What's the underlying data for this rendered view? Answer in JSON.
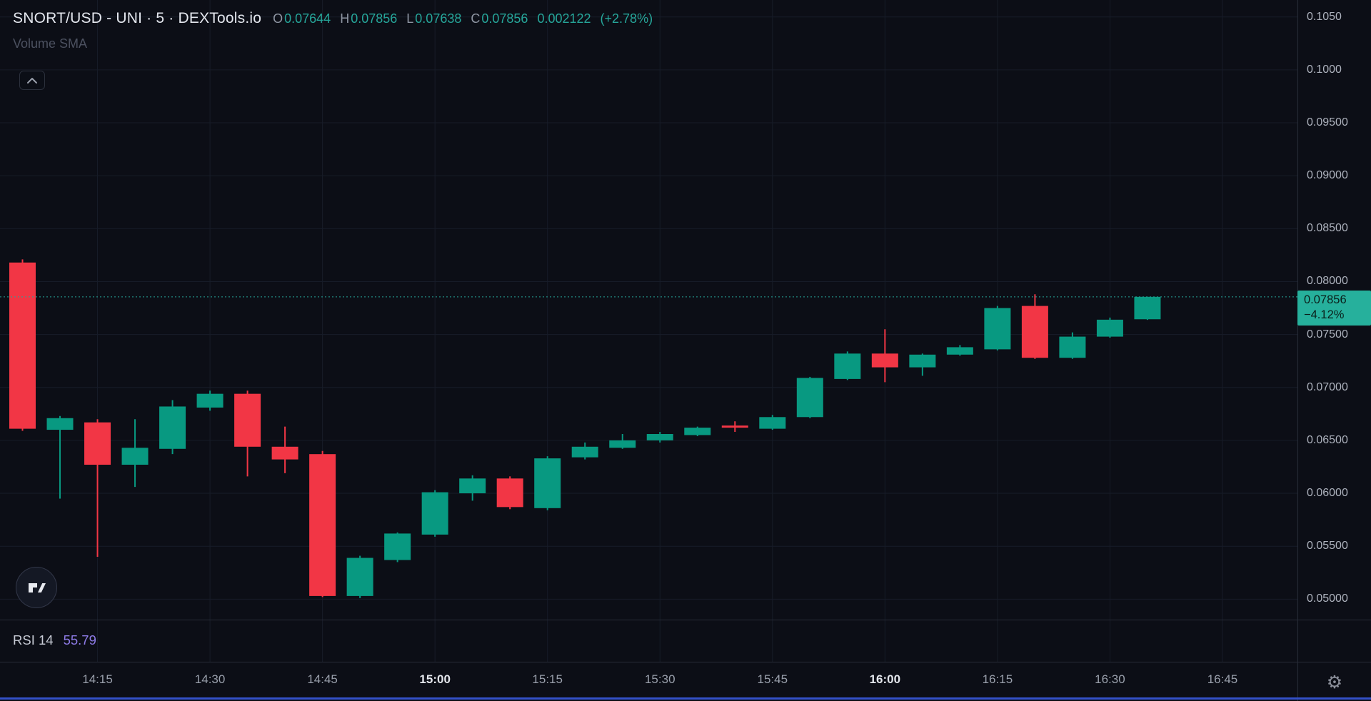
{
  "colors": {
    "background": "#0c0e16",
    "grid": "#171c28",
    "separator": "#272c38",
    "up": "#089981",
    "down": "#f23645",
    "accent_teal": "#26a69a",
    "badge_bg": "#26b09c",
    "badge_text": "#0a1f1a",
    "bottom_line": "#3350c8"
  },
  "header": {
    "symbol_title": "SNORT/USD - UNI · 5 · DEXTools.io",
    "open_label": "O",
    "open": "0.07644",
    "high_label": "H",
    "high": "0.07856",
    "low_label": "L",
    "low": "0.07638",
    "close_label": "C",
    "close": "0.07856",
    "change_abs": "0.002122",
    "change_pct": "(+2.78%)"
  },
  "indicators": {
    "volume": {
      "label": "Volume SMA"
    },
    "rsi": {
      "label": "RSI 14",
      "value": "55.79"
    }
  },
  "last_price_label": {
    "price": "0.07856",
    "change_pct": "−4.12%"
  },
  "price_scale": {
    "labels": [
      {
        "value": 0.105,
        "text": "0.1050"
      },
      {
        "value": 0.1,
        "text": "0.1000"
      },
      {
        "value": 0.095,
        "text": "0.09500"
      },
      {
        "value": 0.09,
        "text": "0.09000"
      },
      {
        "value": 0.085,
        "text": "0.08500"
      },
      {
        "value": 0.08,
        "text": "0.08000"
      },
      {
        "value": 0.075,
        "text": "0.07500"
      },
      {
        "value": 0.07,
        "text": "0.07000"
      },
      {
        "value": 0.065,
        "text": "0.06500"
      },
      {
        "value": 0.06,
        "text": "0.06000"
      },
      {
        "value": 0.055,
        "text": "0.05500"
      },
      {
        "value": 0.05,
        "text": "0.05000"
      }
    ]
  },
  "time_scale": {
    "labels": [
      {
        "time": "14:15",
        "text": "14:15",
        "bold": false
      },
      {
        "time": "14:30",
        "text": "14:30",
        "bold": false
      },
      {
        "time": "14:45",
        "text": "14:45",
        "bold": false
      },
      {
        "time": "15:00",
        "text": "15:00",
        "bold": true
      },
      {
        "time": "15:15",
        "text": "15:15",
        "bold": false
      },
      {
        "time": "15:30",
        "text": "15:30",
        "bold": false
      },
      {
        "time": "15:45",
        "text": "15:45",
        "bold": false
      },
      {
        "time": "16:00",
        "text": "16:00",
        "bold": true
      },
      {
        "time": "16:15",
        "text": "16:15",
        "bold": false
      },
      {
        "time": "16:30",
        "text": "16:30",
        "bold": false
      },
      {
        "time": "16:45",
        "text": "16:45",
        "bold": false
      }
    ]
  },
  "icons": {
    "collapse_button": "chevron-up-icon",
    "settings_button": "gear-icon",
    "logo": "tradingview-logo"
  },
  "chart_data": {
    "type": "candlestick",
    "title": "SNORT/USD - UNI · 5 · DEXTools.io",
    "symbol": "SNORT/USD",
    "interval_minutes": 5,
    "source": "DEXTools.io",
    "last_price": 0.07856,
    "legend_position": "top-left",
    "grid": true,
    "candles": [
      {
        "time": "14:05",
        "open": 0.0818,
        "high": 0.0821,
        "low": 0.0659,
        "close": 0.0661
      },
      {
        "time": "14:10",
        "open": 0.066,
        "high": 0.0673,
        "low": 0.0595,
        "close": 0.0671
      },
      {
        "time": "14:15",
        "open": 0.0667,
        "high": 0.067,
        "low": 0.054,
        "close": 0.0627
      },
      {
        "time": "14:20",
        "open": 0.0627,
        "high": 0.067,
        "low": 0.0606,
        "close": 0.0643
      },
      {
        "time": "14:25",
        "open": 0.0642,
        "high": 0.0688,
        "low": 0.0637,
        "close": 0.0682
      },
      {
        "time": "14:30",
        "open": 0.0681,
        "high": 0.0697,
        "low": 0.0678,
        "close": 0.0694
      },
      {
        "time": "14:35",
        "open": 0.0694,
        "high": 0.0697,
        "low": 0.0616,
        "close": 0.0644
      },
      {
        "time": "14:40",
        "open": 0.0644,
        "high": 0.0663,
        "low": 0.0619,
        "close": 0.0632
      },
      {
        "time": "14:45",
        "open": 0.0637,
        "high": 0.064,
        "low": 0.0502,
        "close": 0.0503
      },
      {
        "time": "14:50",
        "open": 0.0503,
        "high": 0.0541,
        "low": 0.0501,
        "close": 0.0539
      },
      {
        "time": "14:55",
        "open": 0.0537,
        "high": 0.0563,
        "low": 0.0535,
        "close": 0.0562
      },
      {
        "time": "15:00",
        "open": 0.0561,
        "high": 0.0603,
        "low": 0.0559,
        "close": 0.0601
      },
      {
        "time": "15:05",
        "open": 0.06,
        "high": 0.0617,
        "low": 0.0593,
        "close": 0.0614
      },
      {
        "time": "15:10",
        "open": 0.0614,
        "high": 0.0616,
        "low": 0.0585,
        "close": 0.0587
      },
      {
        "time": "15:15",
        "open": 0.0586,
        "high": 0.0635,
        "low": 0.0584,
        "close": 0.0633
      },
      {
        "time": "15:20",
        "open": 0.0634,
        "high": 0.0648,
        "low": 0.0632,
        "close": 0.0644
      },
      {
        "time": "15:25",
        "open": 0.0643,
        "high": 0.0656,
        "low": 0.0642,
        "close": 0.065
      },
      {
        "time": "15:30",
        "open": 0.065,
        "high": 0.0658,
        "low": 0.0648,
        "close": 0.0656
      },
      {
        "time": "15:35",
        "open": 0.0655,
        "high": 0.0663,
        "low": 0.0654,
        "close": 0.0662
      },
      {
        "time": "15:40",
        "open": 0.0664,
        "high": 0.0668,
        "low": 0.0658,
        "close": 0.0662
      },
      {
        "time": "15:45",
        "open": 0.0661,
        "high": 0.0674,
        "low": 0.066,
        "close": 0.0672
      },
      {
        "time": "15:50",
        "open": 0.0672,
        "high": 0.071,
        "low": 0.0671,
        "close": 0.0709
      },
      {
        "time": "15:55",
        "open": 0.0708,
        "high": 0.0734,
        "low": 0.0707,
        "close": 0.0732
      },
      {
        "time": "16:00",
        "open": 0.0732,
        "high": 0.0755,
        "low": 0.0705,
        "close": 0.0719
      },
      {
        "time": "16:05",
        "open": 0.0719,
        "high": 0.0732,
        "low": 0.0711,
        "close": 0.0731
      },
      {
        "time": "16:10",
        "open": 0.0731,
        "high": 0.074,
        "low": 0.073,
        "close": 0.0738
      },
      {
        "time": "16:15",
        "open": 0.0736,
        "high": 0.0777,
        "low": 0.0735,
        "close": 0.0775
      },
      {
        "time": "16:20",
        "open": 0.0777,
        "high": 0.0788,
        "low": 0.0727,
        "close": 0.0728
      },
      {
        "time": "16:25",
        "open": 0.0728,
        "high": 0.0752,
        "low": 0.0727,
        "close": 0.0748
      },
      {
        "time": "16:30",
        "open": 0.0748,
        "high": 0.0766,
        "low": 0.0747,
        "close": 0.0764
      },
      {
        "time": "16:35",
        "open": 0.07644,
        "high": 0.07856,
        "low": 0.07638,
        "close": 0.07856
      }
    ],
    "layout": {
      "pane_width": 1817,
      "pane_height": 869,
      "grid_bottom": 927,
      "x_time_start": "14:02",
      "x_time_end": "16:55",
      "y_price_min": 0.048,
      "y_price_max": 0.1066,
      "candle_width": 37
    }
  }
}
